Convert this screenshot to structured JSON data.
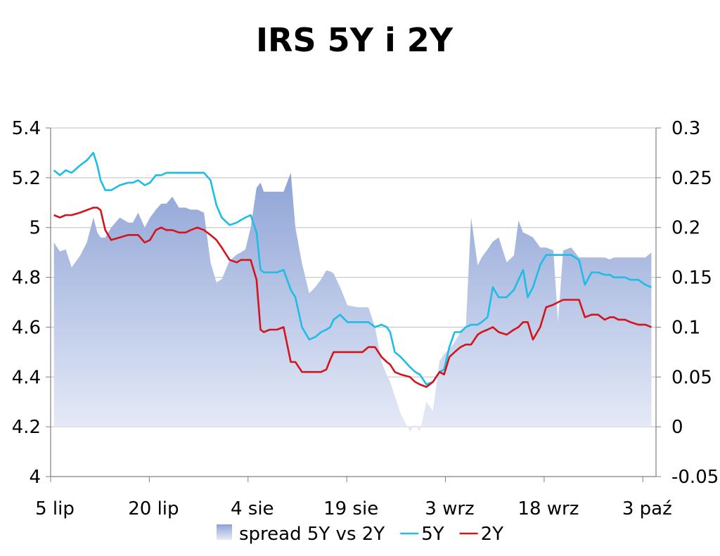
{
  "chart_data": {
    "type": "line",
    "title": "IRS 5Y i 2Y",
    "x_tick_labels": [
      "5 lip",
      "20 lip",
      "4 sie",
      "19 sie",
      "3 wrz",
      "18 wrz",
      "3 paź"
    ],
    "x_tick_days": [
      0,
      15,
      30,
      45,
      60,
      75,
      90
    ],
    "x_range_days": [
      0,
      92
    ],
    "ylim_left": [
      4,
      5.4
    ],
    "yticks_left": [
      "4",
      "4.2",
      "4.4",
      "4.6",
      "4.8",
      "5",
      "5.2",
      "5.4"
    ],
    "ylim_right": [
      -0.05,
      0.3
    ],
    "yticks_right": [
      "-0.05",
      "0",
      "0.05",
      "0.1",
      "0.15",
      "0.2",
      "0.25",
      "0.3"
    ],
    "grid": true,
    "legend_position": "bottom",
    "series": [
      {
        "name": "spread 5Y vs 2Y",
        "kind": "area",
        "axis": "right",
        "color": "#8ea3d6",
        "x": [
          0.5,
          1.4,
          2.3,
          3.2,
          4.5,
          5.5,
          6.5,
          7.1,
          7.6,
          8.3,
          9.2,
          10.5,
          11.8,
          12.5,
          13.3,
          14.3,
          15.1,
          16,
          16.8,
          17.6,
          18.5,
          19.5,
          20.5,
          21.3,
          22.3,
          23.3,
          24.3,
          25.2,
          26,
          27.2,
          28.3,
          28.9,
          29.6,
          30.4,
          31.3,
          31.9,
          32.4,
          33.3,
          34.4,
          35.4,
          36.5,
          37.2,
          38.2,
          39.3,
          40.2,
          41.1,
          41.9,
          42.5,
          43,
          44,
          45.1,
          46.6,
          47.4,
          48.3,
          49.3,
          50.3,
          51.1,
          51.6,
          52.3,
          53.2,
          54.6,
          55.4,
          56.1,
          57.1,
          58.1,
          59.1,
          59.8,
          60.6,
          61.4,
          62.3,
          63.1,
          63.9,
          64.9,
          65.5,
          66.4,
          67.2,
          68.1,
          69.3,
          70.4,
          71.1,
          71.8,
          72.5,
          73.3,
          74.4,
          75.3,
          76.4,
          77.1,
          77.9,
          79.1,
          80.3,
          81.2,
          82.2,
          83.2,
          84.2,
          85,
          85.6,
          86.3,
          87.3,
          88.1,
          89.3,
          90.4,
          91.3
        ],
        "y": [
          0.185,
          0.176,
          0.178,
          0.16,
          0.172,
          0.185,
          0.21,
          0.195,
          0.19,
          0.19,
          0.2,
          0.21,
          0.205,
          0.205,
          0.215,
          0.2,
          0.21,
          0.218,
          0.224,
          0.224,
          0.231,
          0.22,
          0.22,
          0.218,
          0.218,
          0.215,
          0.165,
          0.145,
          0.148,
          0.167,
          0.173,
          0.175,
          0.178,
          0.2,
          0.24,
          0.245,
          0.236,
          0.236,
          0.236,
          0.236,
          0.255,
          0.2,
          0.164,
          0.134,
          0.14,
          0.148,
          0.157,
          0.156,
          0.154,
          0.14,
          0.122,
          0.12,
          0.12,
          0.12,
          0.1,
          0.065,
          0.052,
          0.045,
          0.031,
          0.013,
          -0.005,
          0.002,
          -0.005,
          0.025,
          0.016,
          0.066,
          0.073,
          0.078,
          0.085,
          0.095,
          0.1,
          0.21,
          0.162,
          0.17,
          0.178,
          0.186,
          0.19,
          0.165,
          0.172,
          0.207,
          0.195,
          0.193,
          0.19,
          0.18,
          0.18,
          0.177,
          0.105,
          0.177,
          0.18,
          0.17,
          0.17,
          0.17,
          0.17,
          0.17,
          0.168,
          0.17,
          0.17,
          0.17,
          0.17,
          0.17,
          0.17,
          0.175
        ]
      },
      {
        "name": "5Y",
        "kind": "line",
        "axis": "left",
        "color": "#1ebde6",
        "x": [
          0.5,
          1.4,
          2.3,
          3.2,
          4.5,
          5.5,
          6.5,
          7.1,
          7.6,
          8.3,
          9.2,
          10.5,
          11.8,
          12.5,
          13.3,
          14.3,
          15.1,
          16,
          16.8,
          17.6,
          18.5,
          19.5,
          20.5,
          21.3,
          22.3,
          23.3,
          24.3,
          25.2,
          26,
          27.2,
          28.3,
          28.9,
          29.6,
          30.4,
          31.3,
          31.9,
          32.4,
          33.3,
          34.4,
          35.4,
          36.5,
          37.2,
          38.2,
          39.3,
          40.2,
          41.1,
          41.9,
          42.5,
          43,
          44,
          45.1,
          46.6,
          47.4,
          48.3,
          49.3,
          50.3,
          51.1,
          51.6,
          52.3,
          53.2,
          54.6,
          55.4,
          56.1,
          57.1,
          58.1,
          59.1,
          59.8,
          60.6,
          61.4,
          62.3,
          63.1,
          63.9,
          64.9,
          65.5,
          66.4,
          67.2,
          68.1,
          69.3,
          70.4,
          71.1,
          71.8,
          72.5,
          73.3,
          74.4,
          75.3,
          76.4,
          77.1,
          77.9,
          79.1,
          80.3,
          81.2,
          82.2,
          83.2,
          84.2,
          85,
          85.6,
          86.3,
          87.3,
          88.1,
          89.3,
          90.4,
          91.3
        ],
        "y": [
          5.23,
          5.21,
          5.23,
          5.22,
          5.25,
          5.27,
          5.3,
          5.25,
          5.19,
          5.15,
          5.15,
          5.17,
          5.18,
          5.18,
          5.19,
          5.17,
          5.18,
          5.21,
          5.21,
          5.22,
          5.22,
          5.22,
          5.22,
          5.22,
          5.22,
          5.22,
          5.19,
          5.09,
          5.04,
          5.01,
          5.02,
          5.03,
          5.04,
          5.05,
          4.98,
          4.83,
          4.82,
          4.82,
          4.82,
          4.83,
          4.75,
          4.72,
          4.6,
          4.55,
          4.56,
          4.58,
          4.59,
          4.6,
          4.63,
          4.65,
          4.62,
          4.62,
          4.62,
          4.62,
          4.6,
          4.61,
          4.6,
          4.58,
          4.5,
          4.48,
          4.44,
          4.42,
          4.41,
          4.37,
          4.38,
          4.42,
          4.43,
          4.52,
          4.58,
          4.58,
          4.6,
          4.61,
          4.61,
          4.62,
          4.64,
          4.76,
          4.72,
          4.72,
          4.75,
          4.79,
          4.83,
          4.72,
          4.76,
          4.85,
          4.89,
          4.89,
          4.89,
          4.89,
          4.89,
          4.87,
          4.77,
          4.82,
          4.82,
          4.81,
          4.81,
          4.8,
          4.8,
          4.8,
          4.79,
          4.79,
          4.77,
          4.76
        ]
      },
      {
        "name": "2Y",
        "kind": "line",
        "axis": "left",
        "color": "#d4141c",
        "x": [
          0.5,
          1.4,
          2.3,
          3.2,
          4.5,
          5.5,
          6.5,
          7.1,
          7.6,
          8.3,
          9.2,
          10.5,
          11.8,
          12.5,
          13.3,
          14.3,
          15.1,
          16,
          16.8,
          17.6,
          18.5,
          19.5,
          20.5,
          21.3,
          22.3,
          23.3,
          24.3,
          25.2,
          26,
          27.2,
          28.3,
          28.9,
          29.6,
          30.4,
          31.3,
          31.9,
          32.4,
          33.3,
          34.4,
          35.4,
          36.5,
          37.2,
          38.2,
          39.3,
          40.2,
          41.1,
          41.9,
          42.5,
          43,
          44,
          45.1,
          46.6,
          47.4,
          48.3,
          49.3,
          50.3,
          51.1,
          51.6,
          52.3,
          53.2,
          54.6,
          55.4,
          56.1,
          57.1,
          58.1,
          59.1,
          59.8,
          60.6,
          61.4,
          62.3,
          63.1,
          63.9,
          64.9,
          65.5,
          66.4,
          67.2,
          68.1,
          69.3,
          70.4,
          71.1,
          71.8,
          72.5,
          73.3,
          74.4,
          75.3,
          76.4,
          77.1,
          77.9,
          79.1,
          80.3,
          81.2,
          82.2,
          83.2,
          84.2,
          85,
          85.6,
          86.3,
          87.3,
          88.1,
          89.3,
          90.4,
          91.3
        ],
        "y": [
          5.05,
          5.04,
          5.05,
          5.05,
          5.06,
          5.07,
          5.08,
          5.08,
          5.07,
          4.99,
          4.95,
          4.96,
          4.97,
          4.97,
          4.97,
          4.94,
          4.95,
          4.99,
          5,
          4.99,
          4.99,
          4.98,
          4.98,
          4.99,
          5,
          4.99,
          4.97,
          4.95,
          4.92,
          4.87,
          4.86,
          4.87,
          4.87,
          4.87,
          4.79,
          4.59,
          4.58,
          4.59,
          4.59,
          4.6,
          4.46,
          4.46,
          4.42,
          4.42,
          4.42,
          4.42,
          4.43,
          4.47,
          4.5,
          4.5,
          4.5,
          4.5,
          4.5,
          4.52,
          4.52,
          4.48,
          4.46,
          4.45,
          4.42,
          4.41,
          4.4,
          4.38,
          4.37,
          4.36,
          4.38,
          4.42,
          4.41,
          4.48,
          4.5,
          4.52,
          4.53,
          4.53,
          4.57,
          4.58,
          4.59,
          4.6,
          4.58,
          4.57,
          4.59,
          4.6,
          4.62,
          4.62,
          4.55,
          4.6,
          4.68,
          4.69,
          4.7,
          4.71,
          4.71,
          4.71,
          4.64,
          4.65,
          4.65,
          4.63,
          4.64,
          4.64,
          4.63,
          4.63,
          4.62,
          4.61,
          4.61,
          4.6
        ]
      }
    ]
  }
}
